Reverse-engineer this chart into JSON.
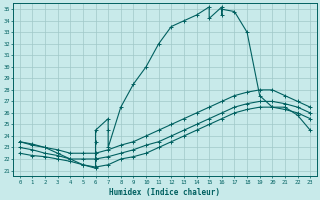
{
  "xlabel": "Humidex (Indice chaleur)",
  "xlim": [
    -0.5,
    23.5
  ],
  "ylim": [
    20.5,
    35.5
  ],
  "xticks": [
    0,
    1,
    2,
    3,
    4,
    5,
    6,
    7,
    8,
    9,
    10,
    11,
    12,
    13,
    14,
    15,
    16,
    17,
    18,
    19,
    20,
    21,
    22,
    23
  ],
  "yticks": [
    21,
    22,
    23,
    24,
    25,
    26,
    27,
    28,
    29,
    30,
    31,
    32,
    33,
    34,
    35
  ],
  "bg_color": "#c8eaea",
  "grid_color": "#a0c8c8",
  "line_color": "#006060",
  "curve1_x": [
    0,
    1,
    2,
    3,
    4,
    5,
    6,
    6,
    6,
    6,
    7,
    7,
    7,
    8,
    9,
    10,
    11,
    12,
    13,
    14,
    15,
    15,
    16,
    16,
    16,
    17,
    18,
    19,
    20,
    21,
    22,
    23
  ],
  "curve1_y": [
    23.5,
    23.2,
    23.0,
    22.5,
    22.0,
    21.5,
    21.2,
    22.0,
    23.5,
    24.5,
    25.5,
    24.5,
    23.0,
    26.5,
    28.5,
    30.0,
    32.0,
    33.5,
    34.0,
    34.5,
    35.2,
    34.2,
    35.2,
    34.5,
    35.0,
    34.8,
    33.0,
    27.5,
    26.5,
    26.5,
    25.8,
    24.5
  ],
  "curve2_x": [
    0,
    1,
    2,
    3,
    4,
    5,
    6,
    7,
    8,
    9,
    10,
    11,
    12,
    13,
    14,
    15,
    16,
    17,
    18,
    19,
    20,
    21,
    22,
    23
  ],
  "curve2_y": [
    23.5,
    23.3,
    23.0,
    22.8,
    22.5,
    22.5,
    22.5,
    22.8,
    23.2,
    23.5,
    24.0,
    24.5,
    25.0,
    25.5,
    26.0,
    26.5,
    27.0,
    27.5,
    27.8,
    28.0,
    28.0,
    27.5,
    27.0,
    26.5
  ],
  "curve3_x": [
    0,
    1,
    2,
    3,
    4,
    5,
    6,
    7,
    8,
    9,
    10,
    11,
    12,
    13,
    14,
    15,
    16,
    17,
    18,
    19,
    20,
    21,
    22,
    23
  ],
  "curve3_y": [
    23.0,
    22.8,
    22.5,
    22.3,
    22.0,
    22.0,
    22.0,
    22.2,
    22.5,
    22.8,
    23.2,
    23.5,
    24.0,
    24.5,
    25.0,
    25.5,
    26.0,
    26.5,
    26.8,
    27.0,
    27.0,
    26.8,
    26.5,
    26.0
  ],
  "curve4_x": [
    0,
    1,
    2,
    3,
    4,
    5,
    6,
    7,
    8,
    9,
    10,
    11,
    12,
    13,
    14,
    15,
    16,
    17,
    18,
    19,
    20,
    21,
    22,
    23
  ],
  "curve4_y": [
    22.5,
    22.3,
    22.2,
    22.0,
    21.8,
    21.5,
    21.3,
    21.5,
    22.0,
    22.2,
    22.5,
    23.0,
    23.5,
    24.0,
    24.5,
    25.0,
    25.5,
    26.0,
    26.3,
    26.5,
    26.5,
    26.3,
    26.0,
    25.5
  ]
}
